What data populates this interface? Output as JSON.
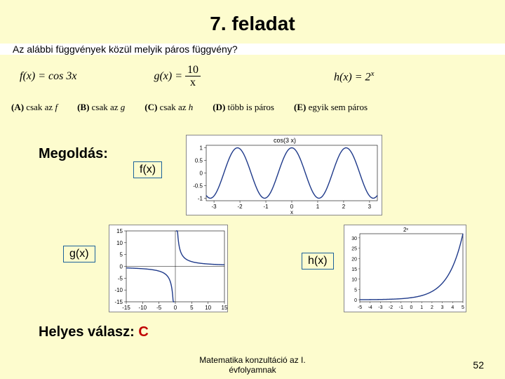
{
  "title": "7. feladat",
  "question": "Az alábbi függvények közül melyik páros függvény?",
  "formulas": {
    "f": "f(x) = cos 3x",
    "g_lhs": "g(x) =",
    "g_num": "10",
    "g_den": "x",
    "h": "h(x) = 2",
    "h_sup": "x"
  },
  "options": {
    "a_b": "(A)",
    "a_t": " csak az ",
    "a_i": "f",
    "b_b": "(B)",
    "b_t": " csak az ",
    "b_i": "g",
    "c_b": "(C)",
    "c_t": " csak az ",
    "c_i": "h",
    "d_b": "(D)",
    "d_t": " több is páros",
    "e_b": "(E)",
    "e_t": " egyik sem páros"
  },
  "labels": {
    "megoldas": "Megoldás:",
    "fx": "f(x)",
    "gx": "g(x)",
    "hx": "h(x)"
  },
  "answer": {
    "text": "Helyes válasz: ",
    "letter": "C"
  },
  "footer": {
    "line1": "Matematika konzultáció az I.",
    "line2": "évfolyamnak"
  },
  "page_number": "52",
  "cos_chart": {
    "title": "cos(3 x)",
    "xlim": [
      -3.3,
      3.3
    ],
    "ylim": [
      -1.1,
      1.1
    ],
    "xticks": [
      -3,
      -2,
      -1,
      0,
      1,
      2,
      3
    ],
    "yticks": [
      -1,
      -0.5,
      0,
      0.5,
      1
    ],
    "xlabel": "x",
    "line_color": "#1f3a8a",
    "bg": "#ffffff",
    "axis_font": 8
  },
  "gx_chart": {
    "xlim": [
      -15,
      15
    ],
    "ylim": [
      -15,
      15
    ],
    "ticks": [
      -15,
      -10,
      -5,
      0,
      5,
      10,
      15
    ],
    "line_color": "#1f3a8a",
    "bg": "#ffffff",
    "axis_font": 8
  },
  "hx_chart": {
    "title": "2ˣ",
    "xlim": [
      -5,
      5
    ],
    "ylim": [
      -1,
      32
    ],
    "xticks": [
      -5,
      -4,
      -3,
      -2,
      -1,
      0,
      1,
      2,
      3,
      4,
      5
    ],
    "yticks": [
      0,
      5,
      10,
      15,
      20,
      25,
      30
    ],
    "line_color": "#1f3a8a",
    "bg": "#ffffff",
    "axis_font": 7
  }
}
